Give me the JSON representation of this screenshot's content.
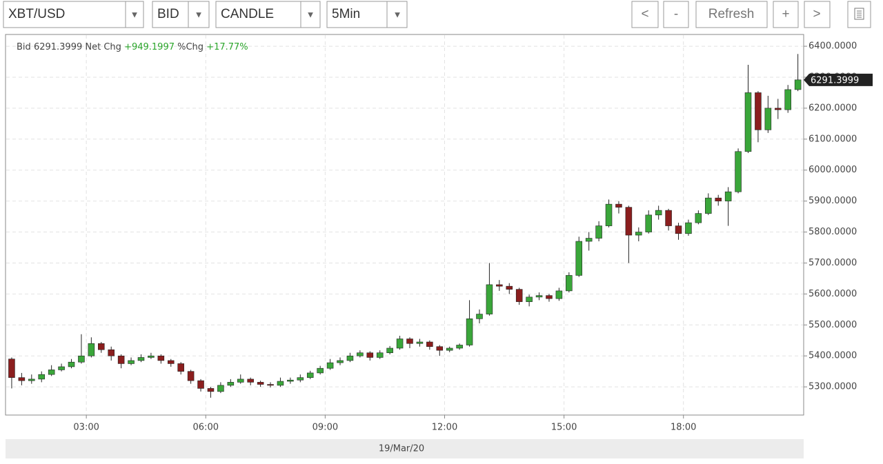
{
  "toolbar": {
    "symbol": "XBT/USD",
    "side": "BID",
    "style": "CANDLE",
    "interval": "5Min",
    "prev": "<",
    "zoom_out": "-",
    "refresh": "Refresh",
    "zoom_in": "+",
    "next": ">"
  },
  "chart_data": {
    "type": "candlestick",
    "bid_label": "Bid",
    "net_change_label": "Net Chg",
    "pct_change_label": "%Chg",
    "net_change": {
      "value": 949.1997,
      "label": "+949.1997"
    },
    "pct_change": {
      "value": 17.77,
      "label": "+17.77%"
    },
    "xlabel": "19/Mar/20",
    "up_color": "#3aa63a",
    "down_color": "#8b1e1e",
    "grid": true,
    "x": [
      1,
      1.25,
      1.5,
      1.75,
      2,
      2.25,
      2.5,
      2.75,
      3,
      3.25,
      3.5,
      3.75,
      4,
      4.25,
      4.5,
      4.75,
      5,
      5.25,
      5.5,
      5.75,
      6,
      6.25,
      6.5,
      6.75,
      7,
      7.25,
      7.5,
      7.75,
      8,
      8.25,
      8.5,
      8.75,
      9,
      9.25,
      9.5,
      9.75,
      10,
      10.25,
      10.5,
      10.75,
      11,
      11.25,
      11.5,
      11.75,
      12,
      12.25,
      12.5,
      12.75,
      13,
      13.25,
      13.5,
      13.75,
      14,
      14.25,
      14.5,
      14.75,
      15,
      15.25,
      15.5,
      15.75,
      16,
      16.25,
      16.5,
      16.75,
      17,
      17.25,
      17.5,
      17.75,
      18,
      18.25,
      18.5,
      18.75,
      19,
      19.25,
      19.5,
      19.75,
      20,
      20.25,
      20.5,
      20.75
    ],
    "open": [
      5390,
      5330,
      5320,
      5325,
      5340,
      5355,
      5365,
      5380,
      5400,
      5440,
      5420,
      5400,
      5375,
      5385,
      5395,
      5400,
      5385,
      5375,
      5350,
      5320,
      5295,
      5285,
      5305,
      5315,
      5325,
      5315,
      5308,
      5305,
      5318,
      5322,
      5330,
      5345,
      5360,
      5378,
      5385,
      5400,
      5410,
      5395,
      5410,
      5425,
      5455,
      5440,
      5445,
      5430,
      5418,
      5425,
      5435,
      5520,
      5535,
      5630,
      5625,
      5615,
      5575,
      5590,
      5595,
      5585,
      5610,
      5660,
      5770,
      5780,
      5820,
      5890,
      5880,
      5790,
      5800,
      5855,
      5870,
      5820,
      5795,
      5830,
      5860,
      5910,
      5900,
      5930,
      6060,
      6250,
      6130,
      6200,
      6195,
      6260
    ],
    "high": [
      5395,
      5345,
      5340,
      5350,
      5370,
      5375,
      5390,
      5470,
      5460,
      5445,
      5430,
      5405,
      5395,
      5405,
      5410,
      5405,
      5390,
      5380,
      5355,
      5325,
      5300,
      5315,
      5325,
      5340,
      5330,
      5320,
      5315,
      5330,
      5330,
      5340,
      5352,
      5368,
      5390,
      5395,
      5410,
      5418,
      5415,
      5418,
      5432,
      5465,
      5460,
      5455,
      5450,
      5435,
      5430,
      5440,
      5580,
      5550,
      5700,
      5645,
      5635,
      5620,
      5598,
      5605,
      5600,
      5620,
      5670,
      5785,
      5800,
      5835,
      5905,
      5900,
      5885,
      5815,
      5870,
      5885,
      5875,
      5830,
      5840,
      5870,
      5925,
      5920,
      5945,
      6070,
      6340,
      6255,
      6240,
      6230,
      6275,
      6375
    ],
    "low": [
      5295,
      5305,
      5310,
      5315,
      5335,
      5350,
      5360,
      5375,
      5395,
      5410,
      5385,
      5360,
      5370,
      5380,
      5390,
      5375,
      5365,
      5340,
      5310,
      5285,
      5265,
      5280,
      5300,
      5310,
      5305,
      5300,
      5298,
      5300,
      5310,
      5315,
      5325,
      5340,
      5355,
      5370,
      5380,
      5395,
      5385,
      5390,
      5405,
      5420,
      5425,
      5430,
      5420,
      5400,
      5412,
      5420,
      5430,
      5505,
      5530,
      5610,
      5600,
      5565,
      5560,
      5580,
      5575,
      5578,
      5605,
      5655,
      5740,
      5770,
      5815,
      5860,
      5700,
      5770,
      5795,
      5840,
      5805,
      5775,
      5788,
      5825,
      5855,
      5885,
      5820,
      5925,
      6055,
      6090,
      6120,
      6165,
      6185,
      6255
    ],
    "close": [
      5330,
      5320,
      5325,
      5340,
      5355,
      5365,
      5380,
      5400,
      5440,
      5420,
      5400,
      5375,
      5385,
      5395,
      5400,
      5385,
      5375,
      5350,
      5320,
      5295,
      5285,
      5305,
      5315,
      5325,
      5315,
      5308,
      5305,
      5318,
      5322,
      5330,
      5345,
      5360,
      5378,
      5385,
      5400,
      5410,
      5395,
      5410,
      5425,
      5455,
      5440,
      5445,
      5430,
      5418,
      5425,
      5435,
      5520,
      5535,
      5630,
      5625,
      5615,
      5575,
      5590,
      5595,
      5585,
      5610,
      5660,
      5770,
      5780,
      5820,
      5890,
      5880,
      5790,
      5800,
      5855,
      5870,
      5820,
      5795,
      5830,
      5860,
      5910,
      5900,
      5930,
      6060,
      6250,
      6130,
      6200,
      6195,
      6260,
      6291.3999
    ],
    "xlim": [
      0.97,
      21.02
    ],
    "xticks": [
      {
        "value": 3,
        "label": "03:00"
      },
      {
        "value": 6,
        "label": "06:00"
      },
      {
        "value": 9,
        "label": "09:00"
      },
      {
        "value": 12,
        "label": "12:00"
      },
      {
        "value": 15,
        "label": "15:00"
      },
      {
        "value": 18,
        "label": "18:00"
      }
    ],
    "ylim": [
      5209,
      6438
    ],
    "yticks": [
      {
        "value": 5300,
        "label": "5300.0000"
      },
      {
        "value": 5400,
        "label": "5400.0000"
      },
      {
        "value": 5500,
        "label": "5500.0000"
      },
      {
        "value": 5600,
        "label": "5600.0000"
      },
      {
        "value": 5700,
        "label": "5700.0000"
      },
      {
        "value": 5800,
        "label": "5800.0000"
      },
      {
        "value": 5900,
        "label": "5900.0000"
      },
      {
        "value": 6000,
        "label": "6000.0000"
      },
      {
        "value": 6100,
        "label": "6100.0000"
      },
      {
        "value": 6200,
        "label": "6200.0000"
      },
      {
        "value": 6300,
        "label": "6300.0000"
      },
      {
        "value": 6400,
        "label": "6400.0000"
      }
    ]
  }
}
